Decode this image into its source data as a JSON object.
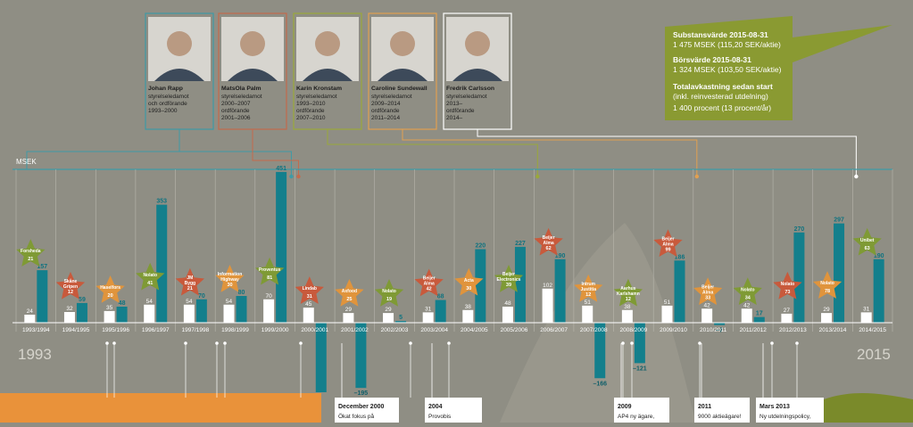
{
  "colors": {
    "background": "#8f8e84",
    "bar_white": "#ffffff",
    "bar_teal": "#137f8c",
    "star_green": "#7f9a35",
    "star_red": "#c85a3c",
    "star_orange": "#e0943c",
    "summary_box": "#8a9a32",
    "orange_panel": "#e9923a",
    "line_teal": "#3f9aa6",
    "line_red": "#c46a4c",
    "line_olive": "#9aa83a",
    "line_orange": "#e2a050"
  },
  "board": [
    {
      "name": "Johan Rapp",
      "lines": [
        "styrelseledamot",
        "och ordförande",
        "1993–2000"
      ],
      "frame": "#3f9aa6"
    },
    {
      "name": "MatsOla Palm",
      "lines": [
        "styrelseledamot",
        "2000–2007",
        "ordförande",
        "2001–2006"
      ],
      "frame": "#c46a4c"
    },
    {
      "name": "Karin Kronstam",
      "lines": [
        "styrelseledamot",
        "1993–2010",
        "ordförande",
        "2007–2010"
      ],
      "frame": "#9aa83a"
    },
    {
      "name": "Caroline Sundewall",
      "lines": [
        "styrelseledamot",
        "2009–2014",
        "ordförande",
        "2011–2014"
      ],
      "frame": "#e2a050"
    },
    {
      "name": "Fredrik Carlsson",
      "lines": [
        "styrelseledamot",
        "2013–",
        "ordförande",
        "2014–"
      ],
      "frame": "#ffffff"
    }
  ],
  "summary": {
    "substans_title": "Substansvärde 2015-08-31",
    "substans_value": "1 475 MSEK (115,20 SEK/aktie)",
    "bors_title": "Börsvärde 2015-08-31",
    "bors_value": "1 324 MSEK (103,50 SEK/aktie)",
    "total_title": "Totalavkastning sedan start",
    "total_sub": "(inkl. reinvesterad utdelning)",
    "total_value": "1 400 procent (13 procent/år)"
  },
  "chart_data": {
    "type": "bar",
    "ylabel": "MSEK",
    "start_year": "1993",
    "end_year": "2015",
    "categories": [
      "1993/1994",
      "1994/1995",
      "1995/1996",
      "1996/1997",
      "1997/1998",
      "1998/1999",
      "1999/2000",
      "2000/2001",
      "2001/2002",
      "2002/2003",
      "2003/2004",
      "2004/2005",
      "2005/2006",
      "2006/2007",
      "2007/2008",
      "2008/2009",
      "2009/2010",
      "2010/2011",
      "2011/2012",
      "2012/2013",
      "2013/2014",
      "2014/2015"
    ],
    "series": [
      {
        "values": [
          24,
          32,
          35,
          54,
          54,
          54,
          70,
          45,
          29,
          29,
          31,
          38,
          48,
          102,
          51,
          38,
          51,
          42,
          42,
          27,
          29,
          31
        ]
      },
      {
        "values": [
          157,
          59,
          48,
          353,
          70,
          80,
          451,
          -195,
          -195,
          5,
          68,
          220,
          227,
          190,
          -166,
          -121,
          186,
          -7,
          17,
          270,
          297,
          190
        ]
      }
    ],
    "bar_labels": [
      [
        "24",
        "157"
      ],
      [
        "32",
        "59"
      ],
      [
        "35",
        "48"
      ],
      [
        "54",
        "353"
      ],
      [
        "54",
        "70"
      ],
      [
        "54",
        "80"
      ],
      [
        "70",
        "451"
      ],
      [
        "45",
        ""
      ],
      [
        "29",
        "–195"
      ],
      [
        "29",
        "5"
      ],
      [
        "31",
        "68"
      ],
      [
        "38",
        "220"
      ],
      [
        "48",
        "227"
      ],
      [
        "102",
        "190"
      ],
      [
        "51",
        "–166"
      ],
      [
        "38",
        "–121"
      ],
      [
        "51",
        "186"
      ],
      [
        "42",
        "–7"
      ],
      [
        "42",
        "17"
      ],
      [
        "27",
        "270"
      ],
      [
        "29",
        "297"
      ],
      [
        "31",
        "190"
      ]
    ],
    "stars": [
      {
        "cat": 0,
        "name": "Forsheda",
        "value": "21",
        "color": "green"
      },
      {
        "cat": 1,
        "name": "Skåne Gripen",
        "value": "12",
        "color": "red"
      },
      {
        "cat": 2,
        "name": "Haselfors",
        "value": "20",
        "color": "orange"
      },
      {
        "cat": 3,
        "name": "Nolato",
        "value": "41",
        "color": "green"
      },
      {
        "cat": 4,
        "name": "JM Bygg",
        "value": "21",
        "color": "red"
      },
      {
        "cat": 5,
        "name": "Information Highway",
        "value": "30",
        "color": "orange"
      },
      {
        "cat": 6,
        "name": "Proventus",
        "value": "81",
        "color": "green"
      },
      {
        "cat": 7,
        "name": "Lindab",
        "value": "31",
        "color": "red"
      },
      {
        "cat": 8,
        "name": "Axfood",
        "value": "25",
        "color": "orange"
      },
      {
        "cat": 9,
        "name": "Nolato",
        "value": "19",
        "color": "green"
      },
      {
        "cat": 10,
        "name": "Beijer Alma",
        "value": "42",
        "color": "red"
      },
      {
        "cat": 11,
        "name": "Acta",
        "value": "30",
        "color": "orange"
      },
      {
        "cat": 12,
        "name": "Beijer Electronics",
        "value": "39",
        "color": "green"
      },
      {
        "cat": 13,
        "name": "Beijer Alma",
        "value": "62",
        "color": "red"
      },
      {
        "cat": 14,
        "name": "Intrum Justitia",
        "value": "12",
        "color": "orange"
      },
      {
        "cat": 15,
        "name": "Aarhus Karlshamn",
        "value": "12",
        "color": "green"
      },
      {
        "cat": 16,
        "name": "Beijer Alma",
        "value": "99",
        "color": "red"
      },
      {
        "cat": 17,
        "name": "Beijer Alma",
        "value": "33",
        "color": "orange"
      },
      {
        "cat": 18,
        "name": "Nolato",
        "value": "34",
        "color": "green"
      },
      {
        "cat": 19,
        "name": "Nolato",
        "value": "73",
        "color": "red"
      },
      {
        "cat": 20,
        "name": "Nolato",
        "value": "78",
        "color": "orange"
      },
      {
        "cat": 21,
        "name": "Unibet",
        "value": "63",
        "color": "green"
      }
    ]
  },
  "events": [
    {
      "title": "December 2000",
      "text": "Ökat fokus på"
    },
    {
      "title": "2004",
      "text": "Provobis"
    },
    {
      "title": "2009",
      "text": "AP4 ny ägare,"
    },
    {
      "title": "2011",
      "text": "9000 aktieägare!"
    },
    {
      "title": "Mars 2013",
      "text": "Ny utdelningspolicy,"
    }
  ]
}
